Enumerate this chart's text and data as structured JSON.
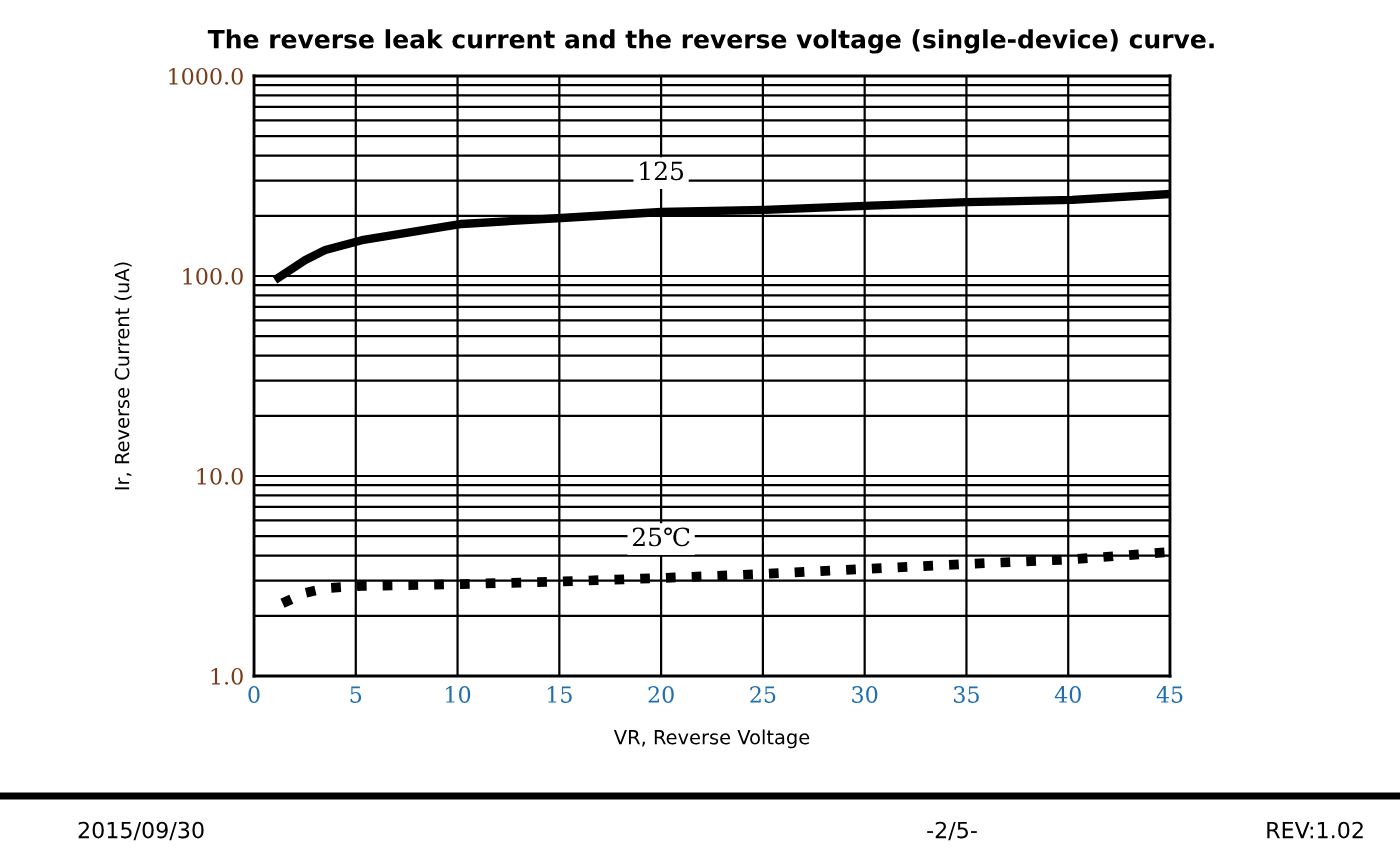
{
  "chart_data": {
    "type": "line",
    "title": "The reverse leak current and the reverse voltage (single-device) curve.",
    "xlabel": "VR, Reverse Voltage",
    "ylabel": "Ir, Reverse Current (uA)",
    "log": "y",
    "grid": true,
    "legend": false,
    "xlim": [
      0,
      45
    ],
    "xticks": [
      0,
      5,
      10,
      15,
      20,
      25,
      30,
      35,
      40,
      45
    ],
    "ylim": [
      1,
      1000
    ],
    "yticks": [
      {
        "value": 1,
        "label": "1.0"
      },
      {
        "value": 10,
        "label": "10.0"
      },
      {
        "value": 100,
        "label": "100.0"
      },
      {
        "value": 1000,
        "label": "1000.0"
      }
    ],
    "series": [
      {
        "name": "125",
        "color": "#000000",
        "line_style": "solid",
        "x": [
          1.2,
          2.5,
          3.5,
          5.3,
          10.2,
          15.1,
          20,
          25.1,
          30,
          35,
          40.2,
          45
        ],
        "values": [
          98,
          120,
          135,
          151,
          182,
          195,
          209,
          214,
          224,
          234,
          240,
          257
        ]
      },
      {
        "name": "25℃",
        "color": "#000000",
        "line_style": "dotted",
        "x": [
          1.4,
          2.5,
          3.5,
          5.3,
          10.2,
          15.1,
          20,
          25.1,
          30,
          35,
          40.2,
          45
        ],
        "values": [
          2.31,
          2.6,
          2.75,
          2.82,
          2.88,
          2.97,
          3.09,
          3.24,
          3.43,
          3.63,
          3.83,
          4.17
        ]
      }
    ],
    "annotations": [
      "2015/09/30",
      "-2/5-",
      "REV:1.02"
    ]
  }
}
